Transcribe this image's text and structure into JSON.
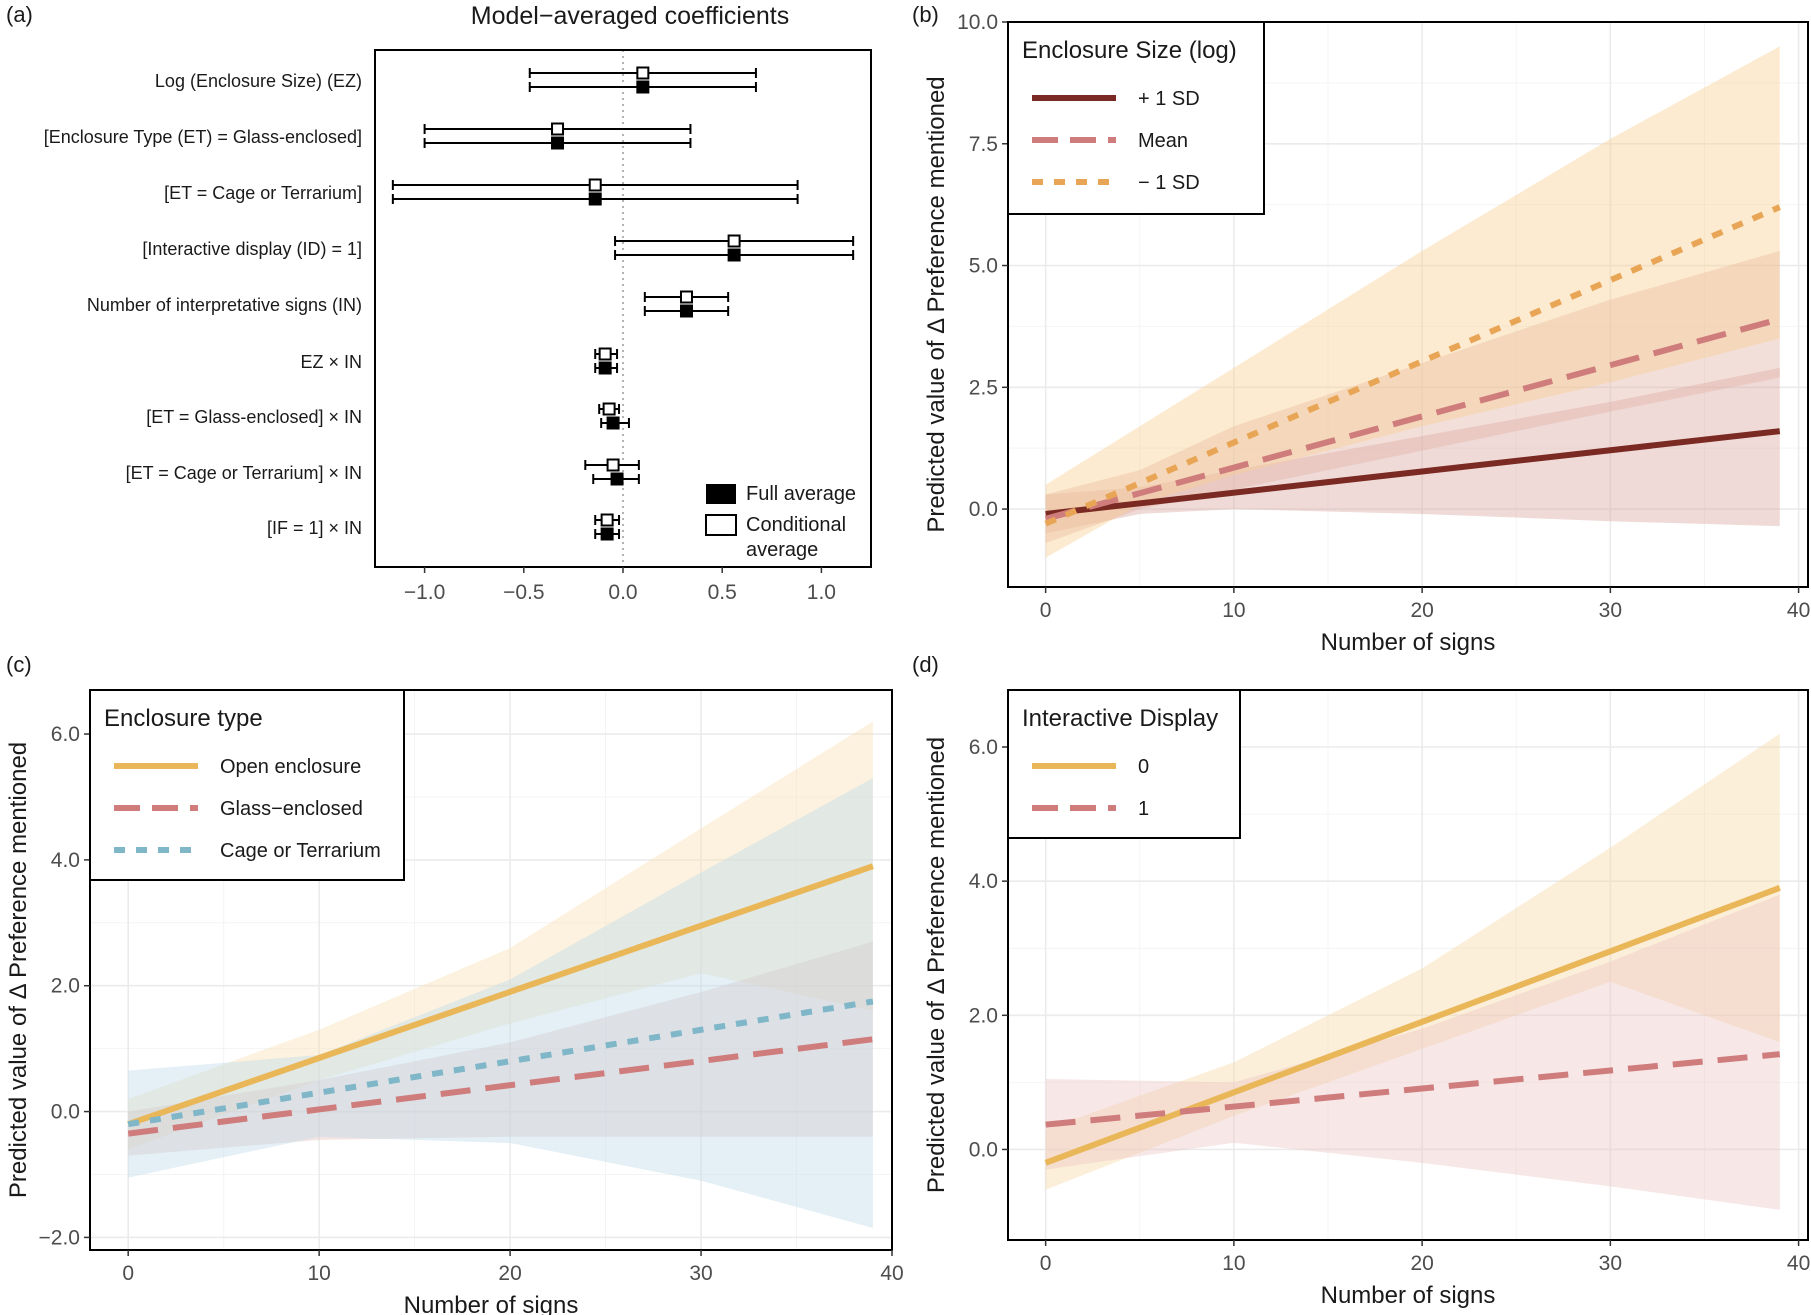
{
  "colors": {
    "dark_red": "#7a2a22",
    "pink": "#cf7c7c",
    "orange": "#e8a555",
    "gold": "#e9b658",
    "blue": "#7fb6c8",
    "band_orange": "#f7cf92",
    "band_pink": "#d9a79f",
    "band_blue": "#a9d3e5",
    "band_green": "#c9d3a8"
  },
  "chart_data": [
    {
      "panel": "(a)",
      "type": "dot-whisker",
      "title": "Model−averaged coefficients",
      "xlim": [
        -1.25,
        1.25
      ],
      "xticks": [
        "−1.0",
        "−0.5",
        "0.0",
        "0.5",
        "1.0"
      ],
      "xtick_values": [
        -1.0,
        -0.5,
        0.0,
        0.5,
        1.0
      ],
      "reference_line": 0,
      "legend": [
        "Full average",
        "Conditional average"
      ],
      "terms": [
        {
          "label": "Log (Enclosure Size) (EZ)",
          "cond": {
            "est": 0.1,
            "lo": -0.47,
            "hi": 0.67
          },
          "full": {
            "est": 0.1,
            "lo": -0.47,
            "hi": 0.67
          }
        },
        {
          "label": "[Enclosure Type (ET) = Glass-enclosed]",
          "cond": {
            "est": -0.33,
            "lo": -1.0,
            "hi": 0.34
          },
          "full": {
            "est": -0.33,
            "lo": -1.0,
            "hi": 0.34
          }
        },
        {
          "label": "[ET = Cage or Terrarium]",
          "cond": {
            "est": -0.14,
            "lo": -1.16,
            "hi": 0.88
          },
          "full": {
            "est": -0.14,
            "lo": -1.16,
            "hi": 0.88
          }
        },
        {
          "label": "[Interactive display (ID) = 1]",
          "cond": {
            "est": 0.56,
            "lo": -0.04,
            "hi": 1.16
          },
          "full": {
            "est": 0.56,
            "lo": -0.04,
            "hi": 1.16
          }
        },
        {
          "label": "Number of interpretative signs (IN)",
          "cond": {
            "est": 0.32,
            "lo": 0.11,
            "hi": 0.53
          },
          "full": {
            "est": 0.32,
            "lo": 0.11,
            "hi": 0.53
          }
        },
        {
          "label": "EZ × IN",
          "cond": {
            "est": -0.09,
            "lo": -0.14,
            "hi": -0.03
          },
          "full": {
            "est": -0.09,
            "lo": -0.14,
            "hi": -0.03
          }
        },
        {
          "label": "[ET = Glass-enclosed]  × IN",
          "cond": {
            "est": -0.07,
            "lo": -0.12,
            "hi": -0.02
          },
          "full": {
            "est": -0.05,
            "lo": -0.11,
            "hi": 0.03
          }
        },
        {
          "label": "[ET = Cage or Terrarium]  × IN",
          "cond": {
            "est": -0.05,
            "lo": -0.19,
            "hi": 0.08
          },
          "full": {
            "est": -0.03,
            "lo": -0.15,
            "hi": 0.08
          }
        },
        {
          "label": "[IF = 1]  × IN",
          "cond": {
            "est": -0.08,
            "lo": -0.14,
            "hi": -0.02
          },
          "full": {
            "est": -0.08,
            "lo": -0.14,
            "hi": -0.02
          }
        }
      ]
    },
    {
      "panel": "(b)",
      "type": "line",
      "xlabel": "Number of signs",
      "ylabel": "Predicted value of  Δ Preference mentioned",
      "xlim": [
        -2,
        40.5
      ],
      "ylim": [
        -1.6,
        10
      ],
      "xticks": [
        "0",
        "10",
        "20",
        "30",
        "40"
      ],
      "xtick_values": [
        0,
        10,
        20,
        30,
        40
      ],
      "yticks": [
        "0.0",
        "2.5",
        "5.0",
        "7.5",
        "10.0"
      ],
      "ytick_values": [
        0,
        2.5,
        5,
        7.5,
        10
      ],
      "legend_title": "Enclosure Size (log)",
      "series": [
        {
          "name": "+ 1 SD",
          "style": "solid",
          "color": "#7a2a22",
          "band": "#d9a79f",
          "x": [
            0,
            39
          ],
          "y": [
            -0.1,
            1.6
          ],
          "lower": [
            [
              0,
              -0.5
            ],
            [
              5,
              -0.1
            ],
            [
              10,
              0.0
            ],
            [
              20,
              -0.1
            ],
            [
              30,
              -0.25
            ],
            [
              39,
              -0.35
            ]
          ],
          "upper": [
            [
              0,
              0.3
            ],
            [
              5,
              0.45
            ],
            [
              10,
              0.8
            ],
            [
              20,
              1.5
            ],
            [
              30,
              2.2
            ],
            [
              39,
              2.9
            ]
          ]
        },
        {
          "name": "Mean",
          "style": "dashed",
          "color": "#cf7c7c",
          "band": "#e3b2a6",
          "x": [
            0,
            39
          ],
          "y": [
            -0.2,
            3.9
          ],
          "lower": [
            [
              0,
              -0.7
            ],
            [
              5,
              0.0
            ],
            [
              10,
              0.4
            ],
            [
              20,
              1.2
            ],
            [
              30,
              2.0
            ],
            [
              39,
              2.7
            ]
          ],
          "upper": [
            [
              0,
              0.3
            ],
            [
              5,
              0.8
            ],
            [
              10,
              1.7
            ],
            [
              20,
              3.0
            ],
            [
              30,
              4.3
            ],
            [
              39,
              5.3
            ]
          ]
        },
        {
          "name": "− 1 SD",
          "style": "dotted",
          "color": "#e8a555",
          "band": "#f7cf92",
          "x": [
            0,
            39
          ],
          "y": [
            -0.3,
            6.2
          ],
          "lower": [
            [
              0,
              -1.0
            ],
            [
              5,
              0.1
            ],
            [
              10,
              0.7
            ],
            [
              20,
              1.7
            ],
            [
              30,
              2.6
            ],
            [
              39,
              3.5
            ]
          ],
          "upper": [
            [
              0,
              0.5
            ],
            [
              5,
              1.7
            ],
            [
              10,
              2.9
            ],
            [
              20,
              5.3
            ],
            [
              30,
              7.6
            ],
            [
              39,
              9.5
            ]
          ]
        }
      ]
    },
    {
      "panel": "(c)",
      "type": "line",
      "xlabel": "Number of signs",
      "ylabel": "Predicted value of  Δ Preference mentioned",
      "xlim": [
        -2,
        40
      ],
      "ylim": [
        -2.2,
        6.7
      ],
      "xticks": [
        "0",
        "10",
        "20",
        "30",
        "40"
      ],
      "xtick_values": [
        0,
        10,
        20,
        30,
        40
      ],
      "yticks": [
        "−2.0",
        "0.0",
        "2.0",
        "4.0",
        "6.0"
      ],
      "ytick_values": [
        -2,
        0,
        2,
        4,
        6
      ],
      "legend_title": "Enclosure type",
      "series": [
        {
          "name": "Open enclosure",
          "style": "solid",
          "color": "#e9b658",
          "band": "#f7dfb3",
          "x": [
            0,
            39
          ],
          "y": [
            -0.2,
            3.9
          ],
          "lower": [
            [
              0,
              -0.6
            ],
            [
              10,
              0.5
            ],
            [
              20,
              1.4
            ],
            [
              30,
              2.2
            ],
            [
              39,
              1.6
            ]
          ],
          "upper": [
            [
              0,
              0.2
            ],
            [
              10,
              1.3
            ],
            [
              20,
              2.6
            ],
            [
              30,
              4.5
            ],
            [
              39,
              6.2
            ]
          ]
        },
        {
          "name": "Glass−enclosed",
          "style": "dashed",
          "color": "#cf7c7c",
          "band": "#e3c0bd",
          "x": [
            0,
            39
          ],
          "y": [
            -0.35,
            1.15
          ],
          "lower": [
            [
              0,
              -0.7
            ],
            [
              10,
              -0.45
            ],
            [
              20,
              -0.4
            ],
            [
              30,
              -0.4
            ],
            [
              39,
              -0.4
            ]
          ],
          "upper": [
            [
              0,
              0.0
            ],
            [
              10,
              0.5
            ],
            [
              20,
              1.1
            ],
            [
              30,
              1.9
            ],
            [
              39,
              2.7
            ]
          ]
        },
        {
          "name": "Cage or Terrarium",
          "style": "dotted",
          "color": "#7fb6c8",
          "band": "#bfdcea",
          "x": [
            0,
            39
          ],
          "y": [
            -0.2,
            1.75
          ],
          "lower": [
            [
              0,
              -1.05
            ],
            [
              10,
              -0.4
            ],
            [
              20,
              -0.5
            ],
            [
              30,
              -1.1
            ],
            [
              39,
              -1.85
            ]
          ],
          "upper": [
            [
              0,
              0.65
            ],
            [
              10,
              0.9
            ],
            [
              20,
              2.1
            ],
            [
              30,
              3.8
            ],
            [
              39,
              5.3
            ]
          ]
        }
      ]
    },
    {
      "panel": "(d)",
      "type": "line",
      "xlabel": "Number of signs",
      "ylabel": "Predicted value of  Δ Preference mentioned",
      "xlim": [
        -2,
        40.5
      ],
      "ylim": [
        -1.35,
        6.85
      ],
      "xticks": [
        "0",
        "10",
        "20",
        "30",
        "40"
      ],
      "xtick_values": [
        0,
        10,
        20,
        30,
        40
      ],
      "yticks": [
        "0.0",
        "2.0",
        "4.0",
        "6.0"
      ],
      "ytick_values": [
        0,
        2,
        4,
        6
      ],
      "legend_title": "Interactive Display",
      "series": [
        {
          "name": "0",
          "style": "solid",
          "color": "#e9b658",
          "band": "#f7d9a6",
          "x": [
            0,
            39
          ],
          "y": [
            -0.2,
            3.9
          ],
          "lower": [
            [
              0,
              -0.6
            ],
            [
              10,
              0.5
            ],
            [
              20,
              1.5
            ],
            [
              30,
              2.5
            ],
            [
              39,
              1.6
            ]
          ],
          "upper": [
            [
              0,
              0.3
            ],
            [
              10,
              1.3
            ],
            [
              20,
              2.7
            ],
            [
              30,
              4.5
            ],
            [
              39,
              6.2
            ]
          ]
        },
        {
          "name": "1",
          "style": "dashed",
          "color": "#cf7c7c",
          "band": "#ecc6c4",
          "x": [
            0,
            39
          ],
          "y": [
            0.37,
            1.42
          ],
          "lower": [
            [
              0,
              -0.3
            ],
            [
              10,
              0.1
            ],
            [
              20,
              -0.2
            ],
            [
              30,
              -0.55
            ],
            [
              39,
              -0.9
            ]
          ],
          "upper": [
            [
              0,
              1.05
            ],
            [
              10,
              1.0
            ],
            [
              20,
              1.8
            ],
            [
              30,
              2.8
            ],
            [
              39,
              3.8
            ]
          ]
        }
      ]
    }
  ]
}
